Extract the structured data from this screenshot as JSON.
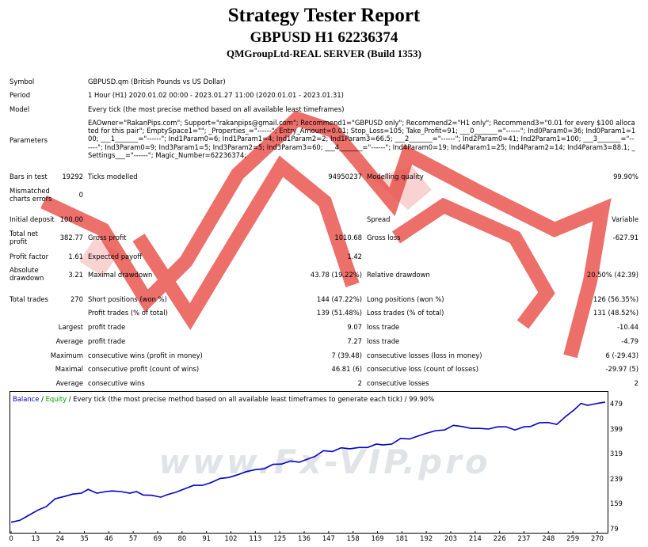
{
  "header": {
    "title": "Strategy Tester Report",
    "subtitle": "GBPUSD H1 62236374",
    "server": "QMGroupLtd-REAL SERVER (Build 1353)"
  },
  "watermark": {
    "text": "www.Fx-VIP.pro",
    "color": "#e8504a"
  },
  "info": {
    "symbol_label": "Symbol",
    "symbol_value": "GBPUSD.qm (British Pounds vs US Dollar)",
    "period_label": "Period",
    "period_value": "1 Hour (H1) 2020.01.02 00:00 - 2023.01.27 11:00 (2020.01.01 - 2023.01.31)",
    "model_label": "Model",
    "model_value": "Every tick (the most precise method based on all available least timeframes)",
    "parameters_label": "Parameters",
    "parameters_value": "EAOwner=\"RakanPips.com\"; Support=\"rakanpips@gmail.com\"; Recommend1=\"GBPUSD only\"; Recommend2=\"H1 only\"; Recommend3=\"0.01 for every $100 allocated for this pair\"; EmptySpace1=\"\"; _Properties_=\"------\"; Entry_Amount=0.01; Stop_Loss=105; Take_Profit=91; ___0_______=\"------\"; Ind0Param0=36; Ind0Param1=100; ___1_______=\"------\"; Ind1Param0=6; Ind1Param1=4; Ind1Param2=2; Ind1Param3=66.5; ___2_______=\"------\"; Ind2Param0=41; Ind2Param1=100; ___3_______=\"------\"; Ind3Param0=9; Ind3Param1=5; Ind3Param2=5; Ind3Param3=60; ___4_______=\"------\"; Ind4Param0=19; Ind4Param1=25; Ind4Param2=14; Ind4Param3=88.1; _Settings___=\"------\"; Magic_Number=62236374;"
  },
  "stats": {
    "bars_label": "Bars in test",
    "bars_value": "19292",
    "ticks_label": "Ticks modelled",
    "ticks_value": "94950237",
    "quality_label": "Modelling quality",
    "quality_value": "99.90%",
    "mismatch_label": "Mismatched charts errors",
    "mismatch_value": "0",
    "deposit_label": "Initial deposit",
    "deposit_value": "100.00",
    "spread_label": "Spread",
    "spread_value": "Variable",
    "net_label": "Total net profit",
    "net_value": "382.77",
    "gprofit_label": "Gross profit",
    "gprofit_value": "1010.68",
    "gloss_label": "Gross loss",
    "gloss_value": "-627.91",
    "pf_label": "Profit factor",
    "pf_value": "1.61",
    "payoff_label": "Expected payoff",
    "payoff_value": "1.42",
    "absdd_label": "Absolute drawdown",
    "absdd_value": "3.21",
    "maxdd_label": "Maximal drawdown",
    "maxdd_value": "43.78 (19.22%)",
    "reldd_label": "Relative drawdown",
    "reldd_value": "20.50% (42.39)",
    "trades_label": "Total trades",
    "trades_value": "270",
    "short_label": "Short positions (won %)",
    "short_value": "144 (47.22%)",
    "long_label": "Long positions (won %)",
    "long_value": "126 (56.35%)",
    "ptrades_label": "Profit trades (% of total)",
    "ptrades_value": "139 (51.48%)",
    "ltrades_label": "Loss trades (% of total)",
    "ltrades_value": "131 (48.52%)",
    "largest_label": "Largest",
    "lprofit_label": "profit trade",
    "lprofit_value": "9.07",
    "lloss_label": "loss trade",
    "lloss_value": "-10.44",
    "average_label": "Average",
    "aprofit_label": "profit trade",
    "aprofit_value": "7.27",
    "aloss_label": "loss trade",
    "aloss_value": "-4.79",
    "maximum_label": "Maximum",
    "mcw_label": "consecutive wins (profit in money)",
    "mcw_value": "7 (39.48)",
    "mcl_label": "consecutive losses (loss in money)",
    "mcl_value": "6 (-29.43)",
    "maximal_label": "Maximal",
    "mcp_label": "consecutive profit (count of wins)",
    "mcp_value": "46.81 (6)",
    "mclo_label": "consecutive loss (count of losses)",
    "mclo_value": "-29.97 (5)",
    "average2_label": "Average",
    "acw_label": "consecutive wins",
    "acw_value": "2",
    "acl_label": "consecutive losses",
    "acl_value": "2"
  },
  "chart_data": {
    "type": "line",
    "legend_balance": "Balance",
    "legend_sep": " / ",
    "legend_equity": "Equity",
    "legend_rest": " / Every tick (the most precise method based on all available least timeframes to generate each tick) / 99.90%",
    "balance_color": "#0000c8",
    "equity_color": "#00a000",
    "y_ticks": [
      "479",
      "399",
      "319",
      "239",
      "159",
      "79"
    ],
    "x_ticks": [
      "0",
      "13",
      "24",
      "35",
      "46",
      "57",
      "69",
      "80",
      "91",
      "102",
      "113",
      "125",
      "136",
      "147",
      "158",
      "169",
      "181",
      "192",
      "203",
      "214",
      "226",
      "237",
      "248",
      "259",
      "270"
    ],
    "xlim": [
      0,
      270
    ],
    "ylim": [
      79,
      479
    ],
    "series": [
      {
        "values": [
          [
            0,
            100
          ],
          [
            4,
            106
          ],
          [
            8,
            122
          ],
          [
            12,
            138
          ],
          [
            16,
            150
          ],
          [
            20,
            175
          ],
          [
            24,
            182
          ],
          [
            28,
            190
          ],
          [
            32,
            193
          ],
          [
            35,
            205
          ],
          [
            39,
            193
          ],
          [
            43,
            198
          ],
          [
            46,
            200
          ],
          [
            50,
            198
          ],
          [
            54,
            193
          ],
          [
            57,
            198
          ],
          [
            60,
            187
          ],
          [
            64,
            186
          ],
          [
            68,
            180
          ],
          [
            71,
            188
          ],
          [
            75,
            196
          ],
          [
            79,
            207
          ],
          [
            83,
            218
          ],
          [
            87,
            218
          ],
          [
            91,
            227
          ],
          [
            95,
            240
          ],
          [
            99,
            243
          ],
          [
            103,
            252
          ],
          [
            107,
            262
          ],
          [
            111,
            268
          ],
          [
            115,
            271
          ],
          [
            119,
            285
          ],
          [
            123,
            286
          ],
          [
            127,
            296
          ],
          [
            131,
            292
          ],
          [
            134,
            300
          ],
          [
            138,
            310
          ],
          [
            142,
            329
          ],
          [
            146,
            326
          ],
          [
            150,
            338
          ],
          [
            154,
            335
          ],
          [
            158,
            339
          ],
          [
            162,
            339
          ],
          [
            166,
            350
          ],
          [
            169,
            347
          ],
          [
            173,
            350
          ],
          [
            177,
            368
          ],
          [
            181,
            366
          ],
          [
            185,
            376
          ],
          [
            189,
            385
          ],
          [
            193,
            393
          ],
          [
            197,
            395
          ],
          [
            201,
            410
          ],
          [
            205,
            406
          ],
          [
            209,
            400
          ],
          [
            213,
            400
          ],
          [
            217,
            398
          ],
          [
            221,
            405
          ],
          [
            225,
            405
          ],
          [
            229,
            395
          ],
          [
            233,
            405
          ],
          [
            236,
            406
          ],
          [
            240,
            418
          ],
          [
            244,
            419
          ],
          [
            248,
            413
          ],
          [
            252,
            438
          ],
          [
            256,
            460
          ],
          [
            259,
            480
          ],
          [
            262,
            474
          ],
          [
            265,
            478
          ],
          [
            268,
            482
          ],
          [
            270,
            484
          ]
        ]
      }
    ]
  }
}
